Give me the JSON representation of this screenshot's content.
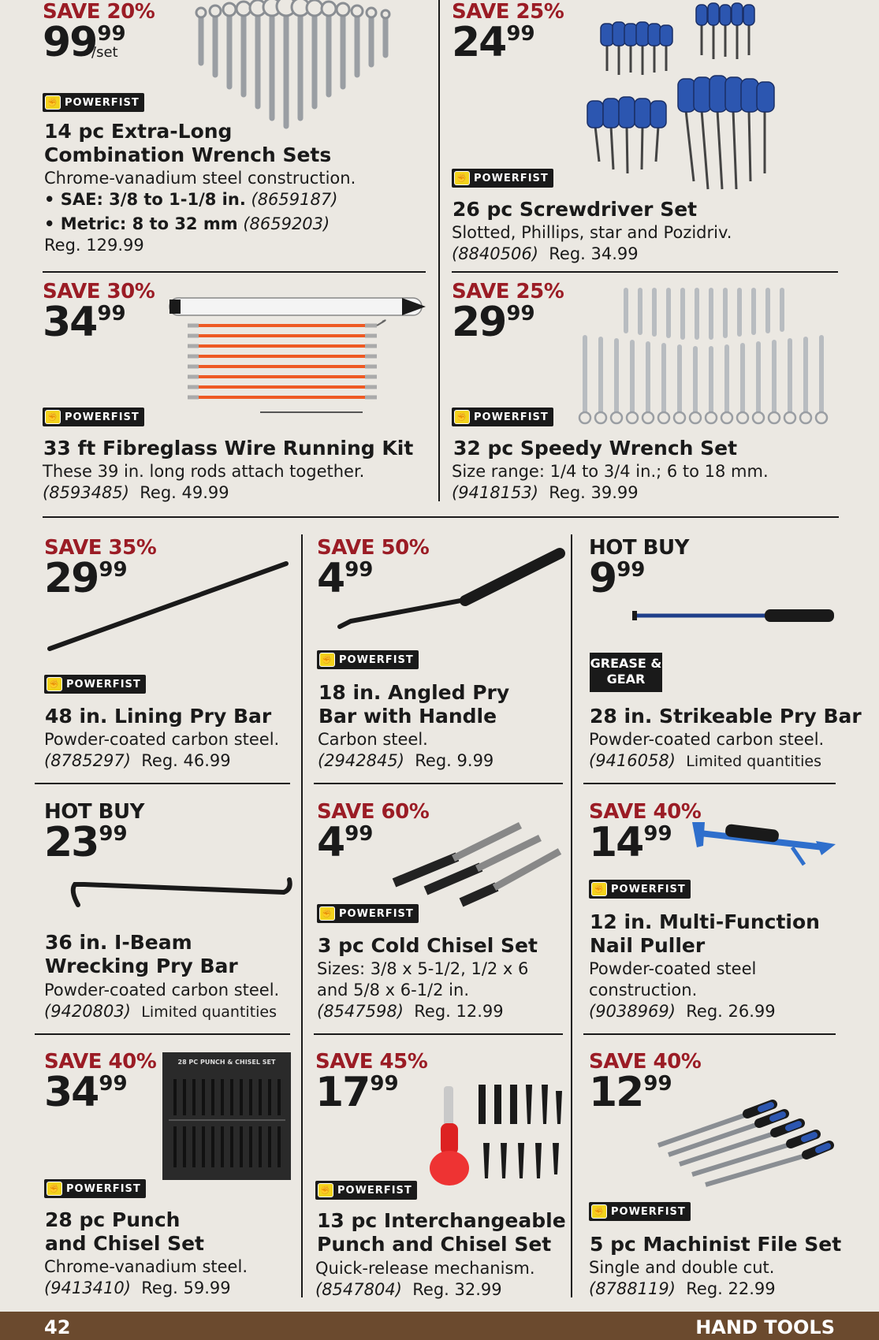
{
  "brand": {
    "powerfist": "POWERFIST",
    "gg": "GREASE & GEAR"
  },
  "products": {
    "wrench14": {
      "save": "SAVE 20%",
      "dollars": "99",
      "cents": "99",
      "unit": "/set",
      "title1": "14 pc Extra-Long",
      "title2": "Combination Wrench Sets",
      "desc1": "Chrome-vanadium steel construction.",
      "sae": "• SAE: 3/8 to 1-1/8 in.",
      "sae_sku": "(8659187)",
      "metric": "• Metric: 8 to 32 mm",
      "metric_sku": "(8659203)",
      "reg": "Reg. 129.99"
    },
    "screwdriver": {
      "save": "SAVE 25%",
      "dollars": "24",
      "cents": "99",
      "title": "26 pc Screwdriver Set",
      "desc": "Slotted, Phillips, star and Pozidriv.",
      "sku": "(8840506)",
      "reg": "Reg. 34.99"
    },
    "wirekit": {
      "save": "SAVE 30%",
      "dollars": "34",
      "cents": "99",
      "title": "33 ft Fibreglass Wire Running Kit",
      "desc": "These 39 in. long rods attach together.",
      "sku": "(8593485)",
      "reg": "Reg. 49.99"
    },
    "speedy": {
      "save": "SAVE 25%",
      "dollars": "29",
      "cents": "99",
      "title": "32 pc Speedy Wrench Set",
      "desc": "Size range: 1/4 to 3/4 in.; 6 to 18 mm.",
      "sku": "(9418153)",
      "reg": "Reg. 39.99"
    },
    "liningbar": {
      "save": "SAVE 35%",
      "dollars": "29",
      "cents": "99",
      "title": "48 in. Lining Pry Bar",
      "desc": "Powder-coated carbon steel.",
      "sku": "(8785297)",
      "reg": "Reg. 46.99"
    },
    "angledbar": {
      "save": "SAVE 50%",
      "dollars": "4",
      "cents": "99",
      "title1": "18 in. Angled Pry",
      "title2": "Bar with Handle",
      "desc": "Carbon steel.",
      "sku": "(2942845)",
      "reg": "Reg. 9.99"
    },
    "strikebar": {
      "save": "HOT BUY",
      "dollars": "9",
      "cents": "99",
      "title": "28 in. Strikeable Pry Bar",
      "desc": "Powder-coated carbon steel.",
      "sku": "(9416058)",
      "reg": "Limited quantities"
    },
    "ibeam": {
      "save": "HOT BUY",
      "dollars": "23",
      "cents": "99",
      "title1": "36 in. I-Beam",
      "title2": "Wrecking Pry Bar",
      "desc": "Powder-coated carbon steel.",
      "sku": "(9420803)",
      "reg": "Limited quantities"
    },
    "chisel3": {
      "save": "SAVE 60%",
      "dollars": "4",
      "cents": "99",
      "title": "3 pc Cold Chisel Set",
      "desc1": "Sizes: 3/8 x 5-1/2, 1/2 x 6",
      "desc2": "and 5/8 x 6-1/2 in.",
      "sku": "(8547598)",
      "reg": "Reg. 12.99"
    },
    "nailpuller": {
      "save": "SAVE 40%",
      "dollars": "14",
      "cents": "99",
      "title1": "12 in. Multi-Function",
      "title2": "Nail Puller",
      "desc1": "Powder-coated steel",
      "desc2": "construction.",
      "sku": "(9038969)",
      "reg": "Reg. 26.99"
    },
    "punch28": {
      "save": "SAVE 40%",
      "dollars": "34",
      "cents": "99",
      "title1": "28 pc Punch",
      "title2": "and Chisel Set",
      "desc": "Chrome-vanadium steel.",
      "sku": "(9413410)",
      "reg": "Reg. 59.99",
      "case_label": "28 PC PUNCH & CHISEL SET"
    },
    "punch13": {
      "save": "SAVE 45%",
      "dollars": "17",
      "cents": "99",
      "title1": "13 pc Interchangeable",
      "title2": "Punch and Chisel Set",
      "desc": "Quick-release mechanism.",
      "sku": "(8547804)",
      "reg": "Reg. 32.99"
    },
    "fileset": {
      "save": "SAVE 40%",
      "dollars": "12",
      "cents": "99",
      "title": "5 pc Machinist File Set",
      "desc": "Single and double cut.",
      "sku": "(8788119)",
      "reg": "Reg. 22.99"
    }
  },
  "footer": {
    "page": "42",
    "section": "HAND TOOLS"
  },
  "colors": {
    "save_red": "#9b1c25",
    "background": "#ebe8e2",
    "footer_brown": "#6b4a2e",
    "tool_blue": "#2c56b0",
    "rod_orange": "#ee5a24"
  }
}
